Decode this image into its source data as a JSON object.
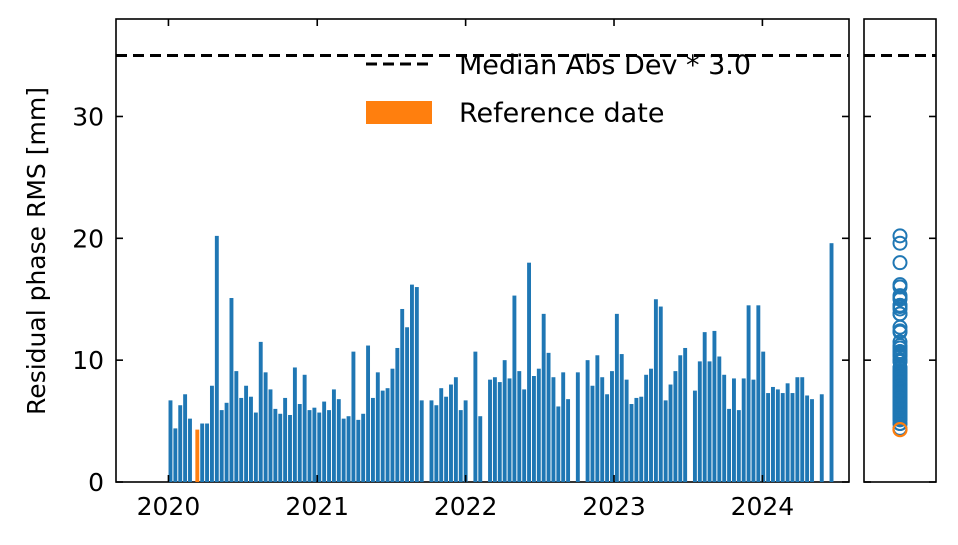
{
  "chart_data": {
    "type": "bar",
    "ylabel": "Residual phase RMS [mm]",
    "xlabel": "",
    "x_axis_type": "date",
    "xlim": [
      "2019-08-25",
      "2024-08-01"
    ],
    "ylim": [
      0,
      38
    ],
    "x_ticks": [
      "2020",
      "2021",
      "2022",
      "2023",
      "2024"
    ],
    "x_tick_dates": [
      "2020-01-01",
      "2021-01-01",
      "2022-01-01",
      "2023-01-01",
      "2024-01-01"
    ],
    "y_ticks": [
      0,
      10,
      20,
      30
    ],
    "grid": false,
    "legend_position": "top-right",
    "threshold": {
      "label": "Median Abs Dev * 3.0",
      "value": 35.0
    },
    "reference": {
      "label": "Reference date",
      "date": "2020-03-12",
      "value": 4.3
    },
    "colors": {
      "bar": "#1f77b4",
      "reference": "#ff7f0e",
      "threshold": "#000000"
    },
    "series": [
      {
        "dates": [
          "2020-01-06",
          "2020-01-18",
          "2020-01-30",
          "2020-02-11",
          "2020-02-23",
          "2020-03-24",
          "2020-04-05",
          "2020-04-17",
          "2020-04-29",
          "2020-05-11",
          "2020-05-23",
          "2020-06-04",
          "2020-06-16",
          "2020-06-28",
          "2020-07-10",
          "2020-07-22",
          "2020-08-03",
          "2020-08-15",
          "2020-08-27",
          "2020-09-08",
          "2020-09-20",
          "2020-10-02",
          "2020-10-14",
          "2020-10-26",
          "2020-11-07",
          "2020-11-19",
          "2020-12-01",
          "2020-12-13",
          "2020-12-25",
          "2021-01-06",
          "2021-01-18",
          "2021-01-30",
          "2021-02-11",
          "2021-02-23",
          "2021-03-07",
          "2021-03-19",
          "2021-03-31",
          "2021-04-12",
          "2021-04-24",
          "2021-05-06",
          "2021-05-18",
          "2021-05-30",
          "2021-06-11",
          "2021-06-23",
          "2021-07-05",
          "2021-07-17",
          "2021-07-29",
          "2021-08-10",
          "2021-08-22",
          "2021-09-03",
          "2021-09-15",
          "2021-10-09",
          "2021-10-21",
          "2021-11-02",
          "2021-11-14",
          "2021-11-26",
          "2021-12-08",
          "2021-12-20",
          "2022-01-01",
          "2022-01-25",
          "2022-02-06",
          "2022-03-02",
          "2022-03-14",
          "2022-03-26",
          "2022-04-07",
          "2022-04-19",
          "2022-05-01",
          "2022-05-13",
          "2022-05-25",
          "2022-06-06",
          "2022-06-18",
          "2022-06-30",
          "2022-07-12",
          "2022-07-24",
          "2022-08-05",
          "2022-08-17",
          "2022-08-29",
          "2022-09-10",
          "2022-10-04",
          "2022-10-28",
          "2022-11-09",
          "2022-11-21",
          "2022-12-03",
          "2022-12-15",
          "2022-12-27",
          "2023-01-08",
          "2023-01-20",
          "2023-02-01",
          "2023-02-13",
          "2023-02-25",
          "2023-03-09",
          "2023-03-21",
          "2023-04-02",
          "2023-04-14",
          "2023-04-26",
          "2023-05-08",
          "2023-05-20",
          "2023-06-01",
          "2023-06-13",
          "2023-06-25",
          "2023-07-19",
          "2023-07-31",
          "2023-08-12",
          "2023-08-24",
          "2023-09-05",
          "2023-09-17",
          "2023-09-29",
          "2023-10-11",
          "2023-10-23",
          "2023-11-04",
          "2023-11-16",
          "2023-11-28",
          "2023-12-10",
          "2023-12-22",
          "2024-01-03",
          "2024-01-15",
          "2024-01-27",
          "2024-02-08",
          "2024-02-20",
          "2024-03-03",
          "2024-03-15",
          "2024-03-27",
          "2024-04-08",
          "2024-04-20",
          "2024-05-02",
          "2024-05-26",
          "2024-06-19"
        ],
        "values": [
          6.7,
          4.4,
          6.3,
          7.2,
          5.2,
          4.8,
          4.8,
          7.9,
          20.2,
          5.9,
          6.5,
          15.1,
          9.1,
          6.9,
          7.9,
          7.0,
          5.7,
          11.5,
          9.0,
          7.6,
          6.0,
          5.6,
          6.9,
          5.5,
          9.4,
          6.4,
          8.8,
          5.9,
          6.1,
          5.7,
          6.6,
          5.9,
          7.6,
          6.8,
          5.2,
          5.4,
          10.7,
          5.1,
          5.6,
          11.2,
          6.9,
          9.0,
          7.5,
          7.7,
          9.3,
          11.0,
          14.2,
          12.7,
          16.2,
          16.0,
          6.7,
          6.7,
          6.3,
          7.7,
          7.0,
          8.0,
          8.6,
          5.9,
          6.7,
          10.7,
          5.4,
          8.4,
          8.6,
          8.2,
          10.0,
          8.5,
          15.3,
          9.1,
          7.6,
          18.0,
          8.7,
          9.3,
          13.8,
          10.6,
          8.6,
          6.2,
          9.0,
          6.8,
          9.0,
          10.0,
          7.9,
          10.4,
          8.6,
          7.2,
          9.1,
          13.8,
          10.5,
          8.4,
          6.4,
          6.9,
          7.0,
          8.8,
          9.3,
          15.0,
          14.4,
          6.7,
          8.0,
          9.1,
          10.4,
          11.0,
          7.5,
          9.9,
          12.3,
          9.9,
          12.4,
          10.3,
          8.8,
          6.0,
          8.5,
          5.9,
          8.5,
          14.5,
          8.4,
          14.5,
          10.7,
          7.3,
          7.8,
          7.6,
          7.3,
          8.1,
          7.3,
          8.6,
          8.6,
          7.1,
          6.8,
          7.2,
          19.6
        ]
      }
    ]
  }
}
